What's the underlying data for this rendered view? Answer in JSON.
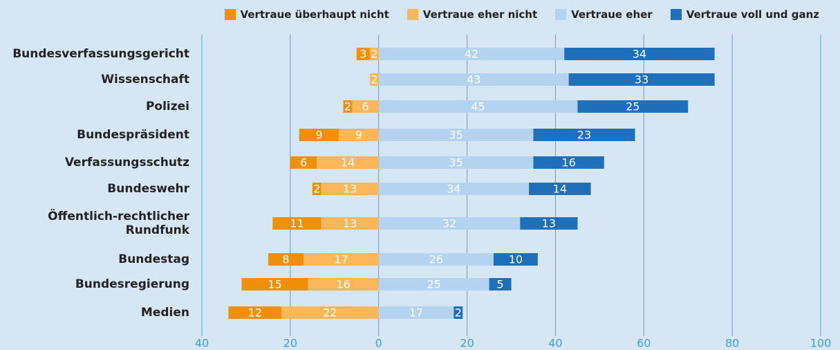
{
  "chart_data": {
    "type": "diverging-stacked-bar",
    "categories": [
      "Bundesverfassungsgericht",
      "Wissenschaft",
      "Polizei",
      "Bundespräsident",
      "Verfassungsschutz",
      "Bundeswehr",
      "Öffentlich-rechtlicher Rundfunk",
      "Bundestag",
      "Bundesregierung",
      "Medien"
    ],
    "series": [
      {
        "name": "Vertraue überhaupt nicht",
        "color": "#f0900a",
        "values": [
          -3,
          0,
          -2,
          -9,
          -6,
          -2,
          -11,
          -8,
          -15,
          -12
        ],
        "value_labels": [
          "3",
          null,
          "2",
          "9",
          "6",
          "2",
          "11",
          "8",
          "15",
          "12"
        ]
      },
      {
        "name": "Vertraue eher nicht",
        "color": "#fbb75a",
        "values": [
          -2,
          -2,
          -6,
          -9,
          -14,
          -13,
          -13,
          -17,
          -16,
          -22
        ],
        "value_labels": [
          "2",
          "2",
          "6",
          "9",
          "14",
          "13",
          "13",
          "17",
          "16",
          "22"
        ]
      },
      {
        "name": "Vertraue eher",
        "color": "#b4d3f0",
        "values": [
          42,
          43,
          45,
          35,
          35,
          34,
          32,
          26,
          25,
          17
        ]
      },
      {
        "name": "Vertraue voll und ganz",
        "color": "#1f6fba",
        "values": [
          34,
          33,
          25,
          23,
          16,
          14,
          13,
          10,
          5,
          2
        ]
      }
    ],
    "xlim": [
      -40,
      100
    ],
    "xticks": [
      {
        "value": -40,
        "label": "40"
      },
      {
        "value": -20,
        "label": "20"
      },
      0,
      20,
      40,
      60,
      80,
      100
    ],
    "grid": true,
    "legend": "top-right"
  }
}
